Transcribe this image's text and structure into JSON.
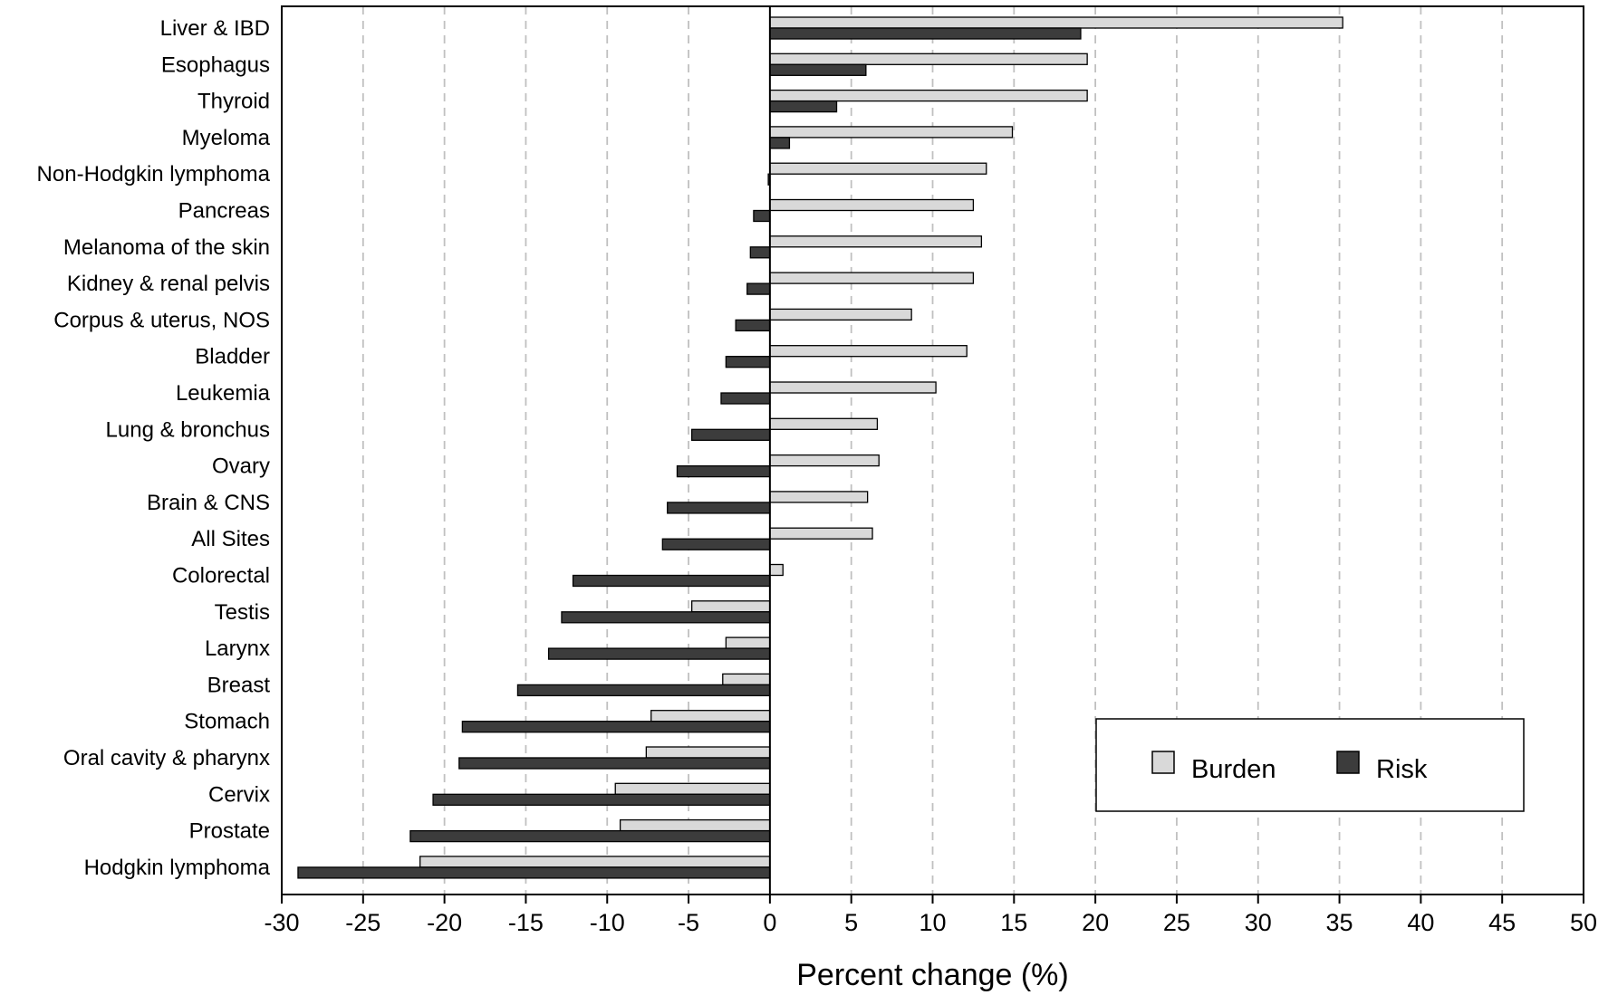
{
  "chart_data": {
    "type": "bar",
    "orientation": "horizontal",
    "title": "",
    "xlabel": "Percent change (%)",
    "ylabel": "",
    "xlim": [
      -30,
      50
    ],
    "xticks": [
      -30,
      -25,
      -20,
      -15,
      -10,
      -5,
      0,
      5,
      10,
      15,
      20,
      25,
      30,
      35,
      40,
      45,
      50
    ],
    "grid": "vertical dashed",
    "legend_position": "bottom-right",
    "categories": [
      "Liver & IBD",
      "Esophagus",
      "Thyroid",
      "Myeloma",
      "Non-Hodgkin lymphoma",
      "Pancreas",
      "Melanoma of the skin",
      "Kidney & renal pelvis",
      "Corpus & uterus, NOS",
      "Bladder",
      "Leukemia",
      "Lung & bronchus",
      "Ovary",
      "Brain & CNS",
      "All Sites",
      "Colorectal",
      "Testis",
      "Larynx",
      "Breast",
      "Stomach",
      "Oral cavity & pharynx",
      "Cervix",
      "Prostate",
      "Hodgkin lymphoma"
    ],
    "series": [
      {
        "name": "Burden",
        "color": "#d9d9d9",
        "values": [
          35.2,
          19.5,
          19.5,
          14.9,
          13.3,
          12.5,
          13.0,
          12.5,
          8.7,
          12.1,
          10.2,
          6.6,
          6.7,
          6.0,
          6.3,
          0.8,
          -4.8,
          -2.7,
          -2.9,
          -7.3,
          -7.6,
          -9.5,
          -9.2,
          -21.5
        ]
      },
      {
        "name": "Risk",
        "color": "#3c3c3c",
        "values": [
          19.1,
          5.9,
          4.1,
          1.2,
          -0.1,
          -1.0,
          -1.2,
          -1.4,
          -2.1,
          -2.7,
          -3.0,
          -4.8,
          -5.7,
          -6.3,
          -6.6,
          -12.1,
          -12.8,
          -13.6,
          -15.5,
          -18.9,
          -19.1,
          -20.7,
          -22.1,
          -29.0
        ]
      }
    ]
  }
}
